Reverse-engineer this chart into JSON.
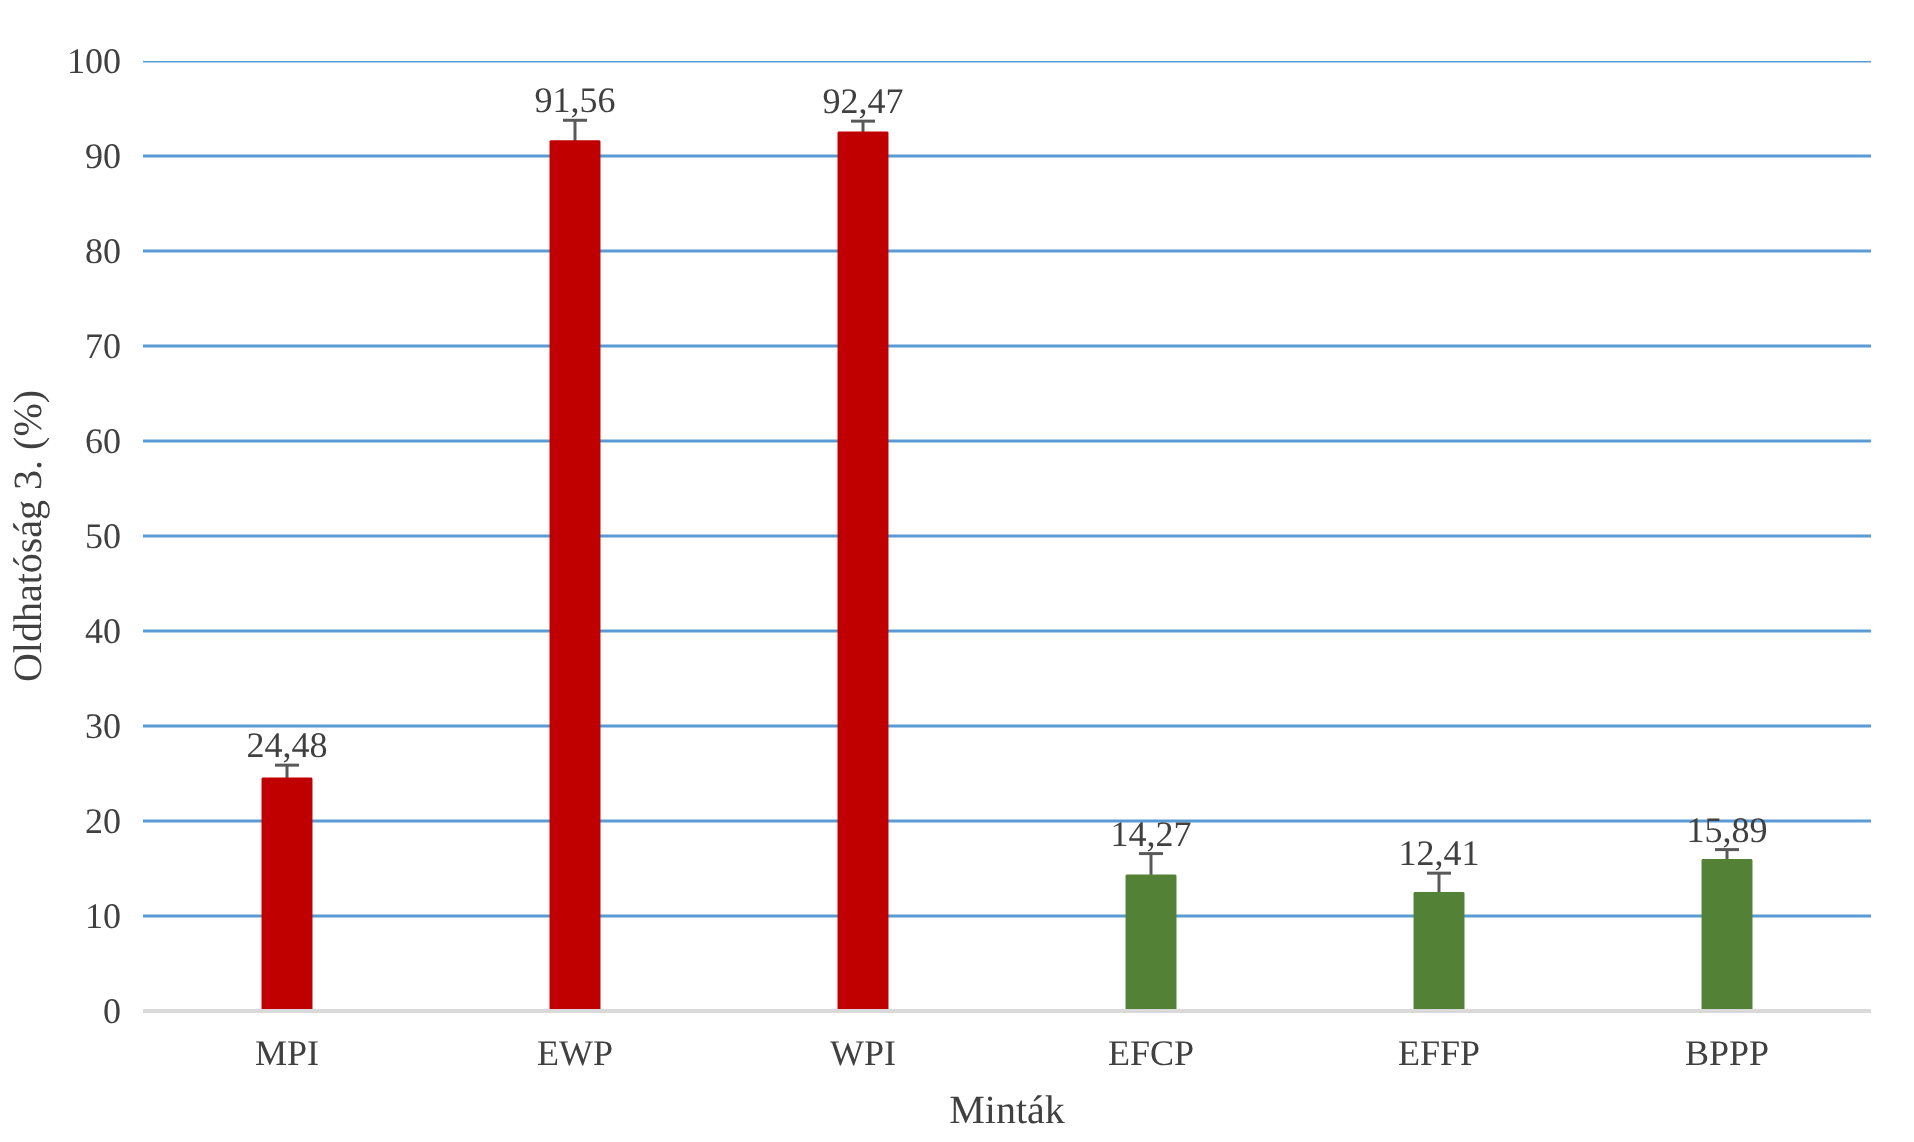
{
  "chart_data": {
    "type": "bar",
    "xlabel": "Minták",
    "ylabel": "Oldhatóság 3. (%)",
    "categories": [
      "MPI",
      "EWP",
      "WPI",
      "EFCP",
      "EFFP",
      "BPPP"
    ],
    "values": [
      24.48,
      91.56,
      92.47,
      14.27,
      12.41,
      15.89
    ],
    "colors": [
      "#c00000",
      "#c00000",
      "#c00000",
      "#538135",
      "#538135",
      "#538135"
    ],
    "errors": [
      1.4,
      2.2,
      1.2,
      2.3,
      2.1,
      1.1
    ],
    "value_labels": [
      "24,48",
      "91,56",
      "92,47",
      "14,27",
      "12,41",
      "15,89"
    ],
    "ylim": [
      0,
      100
    ],
    "yticks": [
      0,
      10,
      20,
      30,
      40,
      50,
      60,
      70,
      80,
      90,
      100
    ],
    "grid": "y"
  }
}
